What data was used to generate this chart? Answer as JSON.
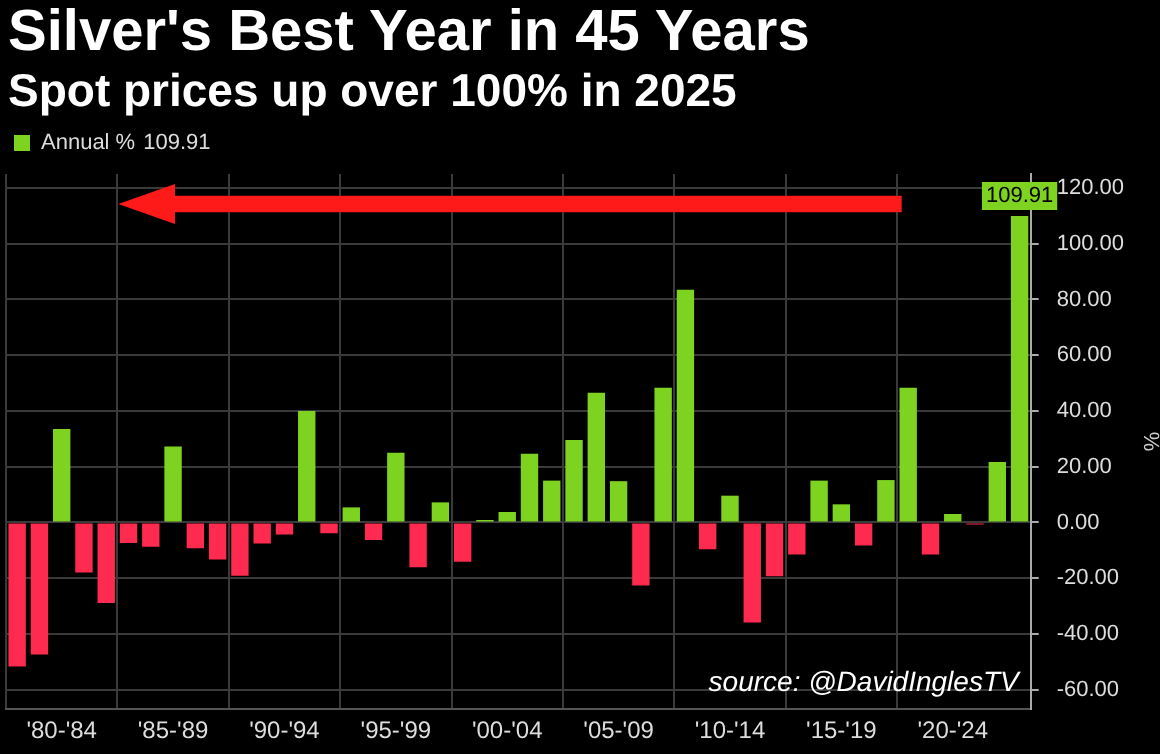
{
  "chart_data": {
    "type": "bar",
    "title": "Silver's Best Year in 45 Years",
    "subtitle": "Spot prices up over 100% in 2025",
    "ylabel": "%",
    "categories": [
      null,
      null,
      "'80-'84",
      null,
      null,
      null,
      null,
      "'85-'89",
      null,
      null,
      null,
      null,
      "'90-'94",
      null,
      null,
      null,
      null,
      "'95-'99",
      null,
      null,
      null,
      null,
      "'00-'04",
      null,
      null,
      null,
      null,
      "'05-'09",
      null,
      null,
      null,
      null,
      "'10-'14",
      null,
      null,
      null,
      null,
      "'15-'19",
      null,
      null,
      null,
      null,
      "'20-'24",
      null,
      null,
      null
    ],
    "series": [
      {
        "name": "Annual %",
        "values": [
          -51.7,
          -47.4,
          33.5,
          -18,
          -28.9,
          -7.4,
          -8.7,
          27.2,
          -9.3,
          -13.3,
          -19.1,
          -7.6,
          -4.3,
          40,
          -3.9,
          5.4,
          -6.3,
          25,
          -16.1,
          7.2,
          -14.1,
          0.9,
          3.7,
          24.6,
          15,
          29.6,
          46.5,
          14.8,
          -22.6,
          48.3,
          83.5,
          -9.6,
          9.6,
          -35.9,
          -19.3,
          -11.5,
          15,
          6.5,
          -8.3,
          15.2,
          48.3,
          -11.5,
          3,
          -0.7,
          21.7,
          109.91
        ],
        "colors": [
          "#ff2a4f",
          "#ff2a4f",
          "#7ed321",
          "#ff2a4f",
          "#ff2a4f",
          "#ff2a4f",
          "#ff2a4f",
          "#7ed321",
          "#ff2a4f",
          "#ff2a4f",
          "#ff2a4f",
          "#ff2a4f",
          "#ff2a4f",
          "#7ed321",
          "#ff2a4f",
          "#7ed321",
          "#ff2a4f",
          "#7ed321",
          "#ff2a4f",
          "#7ed321",
          "#ff2a4f",
          "#7ed321",
          "#7ed321",
          "#7ed321",
          "#7ed321",
          "#7ed321",
          "#7ed321",
          "#7ed321",
          "#ff2a4f",
          "#7ed321",
          "#7ed321",
          "#ff2a4f",
          "#7ed321",
          "#ff2a4f",
          "#ff2a4f",
          "#ff2a4f",
          "#7ed321",
          "#7ed321",
          "#ff2a4f",
          "#7ed321",
          "#7ed321",
          "#ff2a4f",
          "#7ed321",
          "#ff2a4f",
          "#7ed321",
          "#7ed321"
        ],
        "color": "#7ed321",
        "value_labels": [
          null,
          null,
          null,
          null,
          null,
          null,
          null,
          null,
          null,
          null,
          null,
          null,
          null,
          null,
          null,
          null,
          null,
          null,
          null,
          null,
          null,
          null,
          null,
          null,
          null,
          null,
          null,
          null,
          null,
          null,
          null,
          null,
          null,
          null,
          null,
          null,
          null,
          null,
          null,
          null,
          null,
          null,
          null,
          null,
          null,
          "109.91"
        ]
      }
    ],
    "ylim": [
      -67,
      125
    ],
    "yticks": [
      {
        "value": -60,
        "label": "-60.00"
      },
      {
        "value": -40,
        "label": "-40.00"
      },
      {
        "value": -20,
        "label": "-20.00"
      },
      {
        "value": 0,
        "label": "0.00"
      },
      {
        "value": 20,
        "label": "20.00"
      },
      {
        "value": 40,
        "label": "40.00"
      },
      {
        "value": 60,
        "label": "60.00"
      },
      {
        "value": 80,
        "label": "80.00"
      },
      {
        "value": 100,
        "label": "100.00"
      },
      {
        "value": 120,
        "label": "120.00"
      }
    ],
    "grid": true,
    "legend": "top left",
    "annotations": [
      "source: @DavidInglesTV"
    ]
  }
}
